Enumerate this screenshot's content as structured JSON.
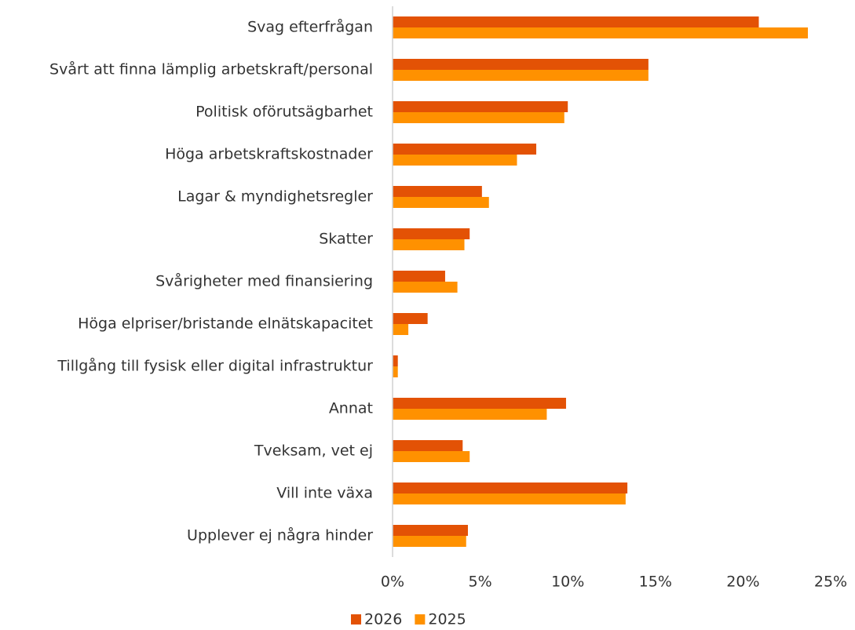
{
  "chart_data": {
    "type": "hbar",
    "categories": [
      "Svag efterfrågan",
      "Svårt att finna lämplig arbetskraft/personal",
      "Politisk oförutsägbarhet",
      "Höga arbetskraftskostnader",
      "Lagar & myndighetsregler",
      "Skatter",
      "Svårigheter med finansiering",
      "Höga elpriser/bristande elnätskapacitet",
      "Tillgång till fysisk eller digital infrastruktur",
      "Annat",
      "Tveksam, vet ej",
      "Vill inte växa",
      "Upplever ej några hinder"
    ],
    "series": [
      {
        "name": "2026",
        "color": "#e35205",
        "values": [
          20.9,
          14.6,
          10.0,
          8.2,
          5.1,
          4.4,
          3.0,
          2.0,
          0.3,
          9.9,
          4.0,
          13.4,
          4.3
        ]
      },
      {
        "name": "2025",
        "color": "#ff9100",
        "values": [
          23.7,
          14.6,
          9.8,
          7.1,
          5.5,
          4.1,
          3.7,
          0.9,
          0.3,
          8.8,
          4.4,
          13.3,
          4.2
        ]
      }
    ],
    "xlim": [
      0,
      25
    ],
    "xticks": [
      {
        "value": 0,
        "label": "0%"
      },
      {
        "value": 5,
        "label": "5%"
      },
      {
        "value": 10,
        "label": "10%"
      },
      {
        "value": 15,
        "label": "15%"
      },
      {
        "value": 20,
        "label": "20%"
      },
      {
        "value": 25,
        "label": "25%"
      }
    ],
    "legend": "bottom"
  }
}
